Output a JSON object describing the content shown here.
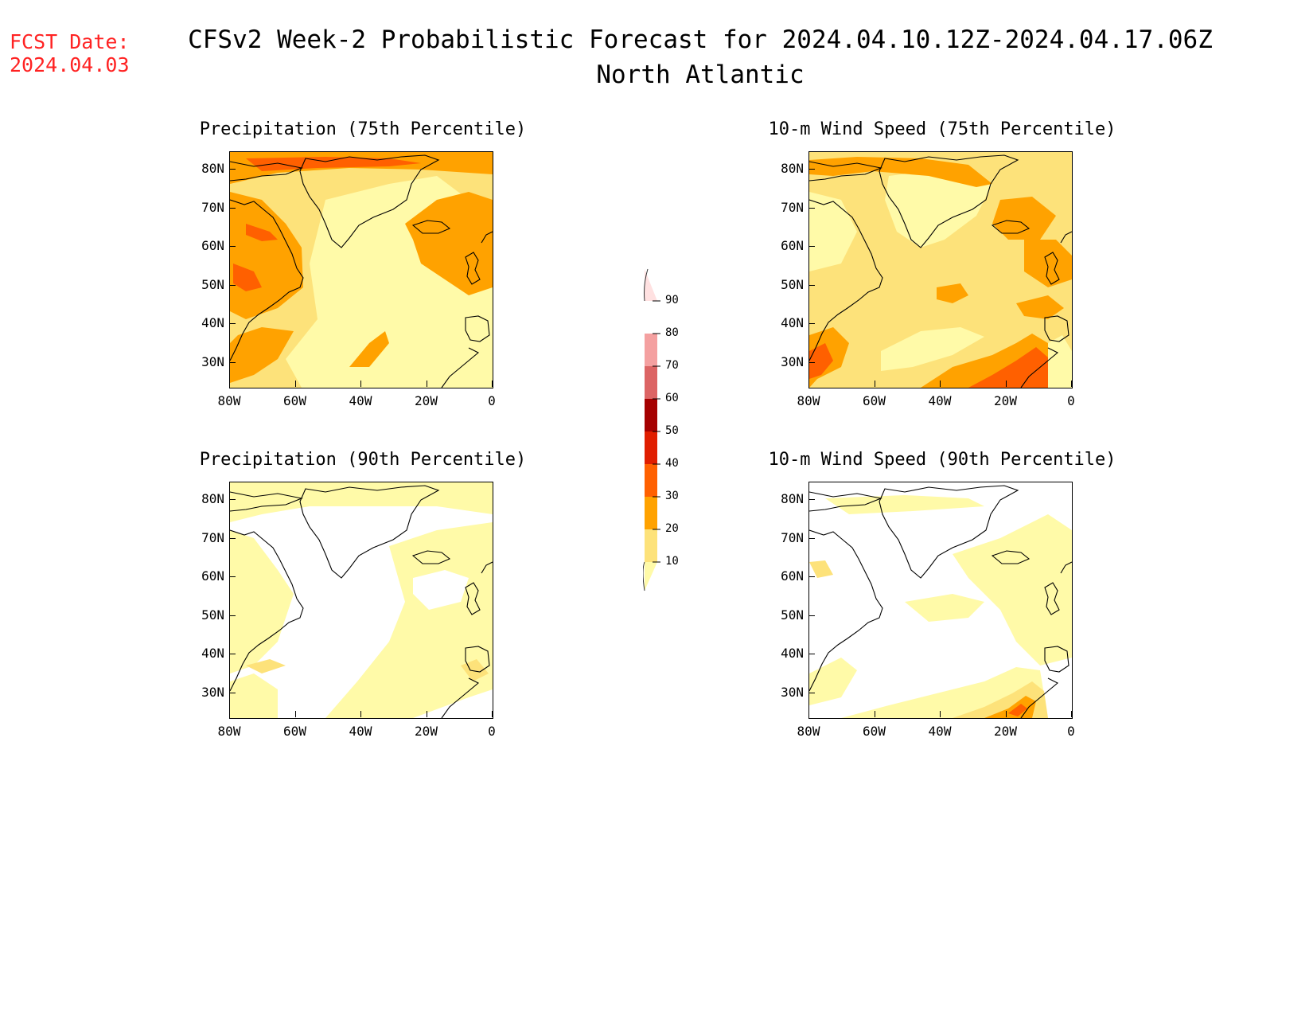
{
  "header": {
    "fcst_label": "FCST Date:",
    "fcst_date": "2024.04.03",
    "title": "CFSv2 Week-2 Probabilistic Forecast for 2024.04.10.12Z-2024.04.17.06Z",
    "subtitle": "North Atlantic"
  },
  "axes": {
    "lat_labels": [
      "80N",
      "70N",
      "60N",
      "50N",
      "40N",
      "30N"
    ],
    "lon_labels": [
      "80W",
      "60W",
      "40W",
      "20W",
      "0"
    ]
  },
  "panels": [
    {
      "id": "precip75",
      "title": "Precipitation (75th Percentile)",
      "variable": "precipitation",
      "percentile": 75
    },
    {
      "id": "wind75",
      "title": "10-m Wind Speed (75th Percentile)",
      "variable": "wind",
      "percentile": 75
    },
    {
      "id": "precip90",
      "title": "Precipitation (90th Percentile)",
      "variable": "precipitation",
      "percentile": 90
    },
    {
      "id": "wind90",
      "title": "10-m Wind Speed (90th Percentile)",
      "variable": "wind",
      "percentile": 90
    }
  ],
  "colorbar": {
    "levels": [
      "10",
      "20",
      "30",
      "40",
      "50",
      "60",
      "70",
      "80",
      "90"
    ],
    "colors": [
      "#fffaa8",
      "#fde27a",
      "#ffa200",
      "#ff6000",
      "#e01e00",
      "#a50000",
      "#dc6464",
      "#f4a0a0",
      "#ffe1e1"
    ]
  }
}
